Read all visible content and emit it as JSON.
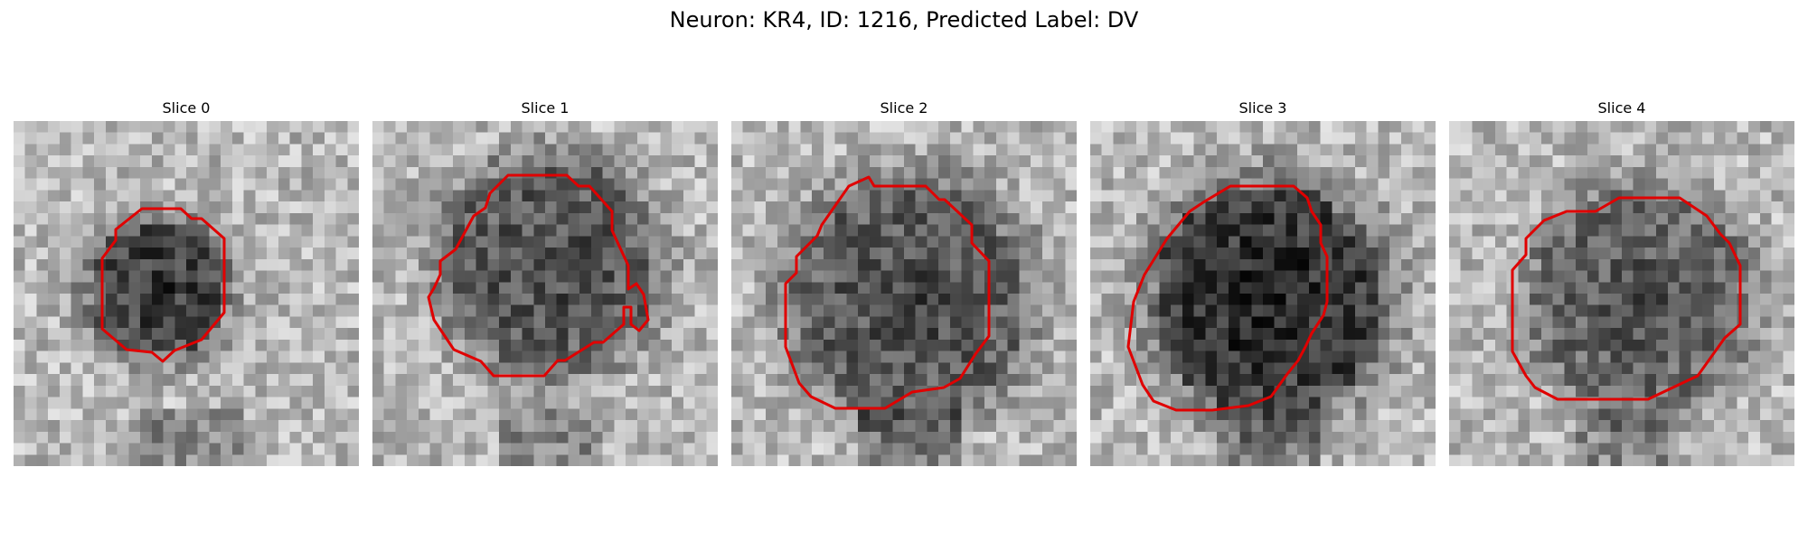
{
  "figure": {
    "title": "Neuron: KR4, ID: 1216, Predicted Label: DV"
  },
  "panels": [
    {
      "title": "Slice 0"
    },
    {
      "title": "Slice 1"
    },
    {
      "title": "Slice 2"
    },
    {
      "title": "Slice 3"
    },
    {
      "title": "Slice 4"
    }
  ],
  "contour_color": "#e00000",
  "colormap": "grayscale"
}
